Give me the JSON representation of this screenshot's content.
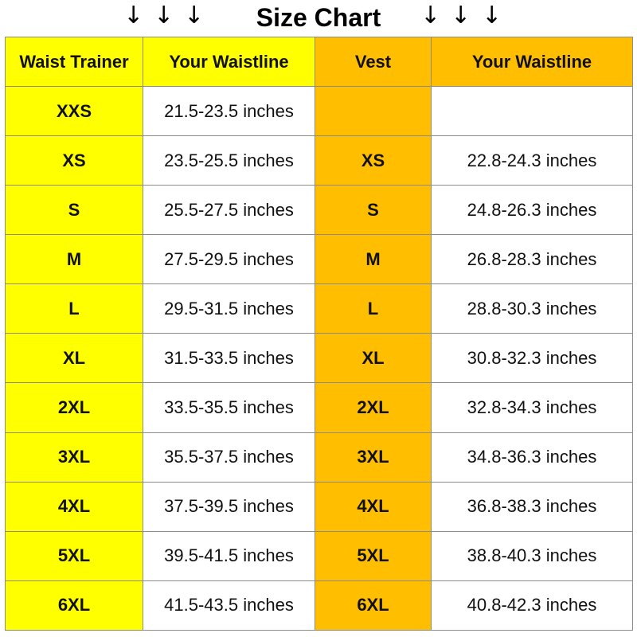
{
  "title": "Size Chart",
  "arrow_glyph": "↓",
  "colors": {
    "waist_trainer_column": "#ffff00",
    "vest_column": "#ffbf00",
    "grid_lines": "#8c8c8c"
  },
  "headers": {
    "waist_trainer": "Waist Trainer",
    "waistline_trainer": "Your Waistline",
    "vest": "Vest",
    "waistline_vest": "Your Waistline"
  },
  "rows": [
    {
      "trainer_size": "XXS",
      "trainer_range": "21.5-23.5 inches",
      "vest_size": "",
      "vest_range": ""
    },
    {
      "trainer_size": "XS",
      "trainer_range": "23.5-25.5 inches",
      "vest_size": "XS",
      "vest_range": "22.8-24.3 inches"
    },
    {
      "trainer_size": "S",
      "trainer_range": "25.5-27.5 inches",
      "vest_size": "S",
      "vest_range": "24.8-26.3 inches"
    },
    {
      "trainer_size": "M",
      "trainer_range": "27.5-29.5 inches",
      "vest_size": "M",
      "vest_range": "26.8-28.3 inches"
    },
    {
      "trainer_size": "L",
      "trainer_range": "29.5-31.5 inches",
      "vest_size": "L",
      "vest_range": "28.8-30.3 inches"
    },
    {
      "trainer_size": "XL",
      "trainer_range": "31.5-33.5 inches",
      "vest_size": "XL",
      "vest_range": "30.8-32.3 inches"
    },
    {
      "trainer_size": "2XL",
      "trainer_range": "33.5-35.5 inches",
      "vest_size": "2XL",
      "vest_range": "32.8-34.3 inches"
    },
    {
      "trainer_size": "3XL",
      "trainer_range": "35.5-37.5 inches",
      "vest_size": "3XL",
      "vest_range": "34.8-36.3 inches"
    },
    {
      "trainer_size": "4XL",
      "trainer_range": "37.5-39.5 inches",
      "vest_size": "4XL",
      "vest_range": "36.8-38.3 inches"
    },
    {
      "trainer_size": "5XL",
      "trainer_range": "39.5-41.5 inches",
      "vest_size": "5XL",
      "vest_range": "38.8-40.3 inches"
    },
    {
      "trainer_size": "6XL",
      "trainer_range": "41.5-43.5 inches",
      "vest_size": "6XL",
      "vest_range": "40.8-42.3 inches"
    }
  ]
}
